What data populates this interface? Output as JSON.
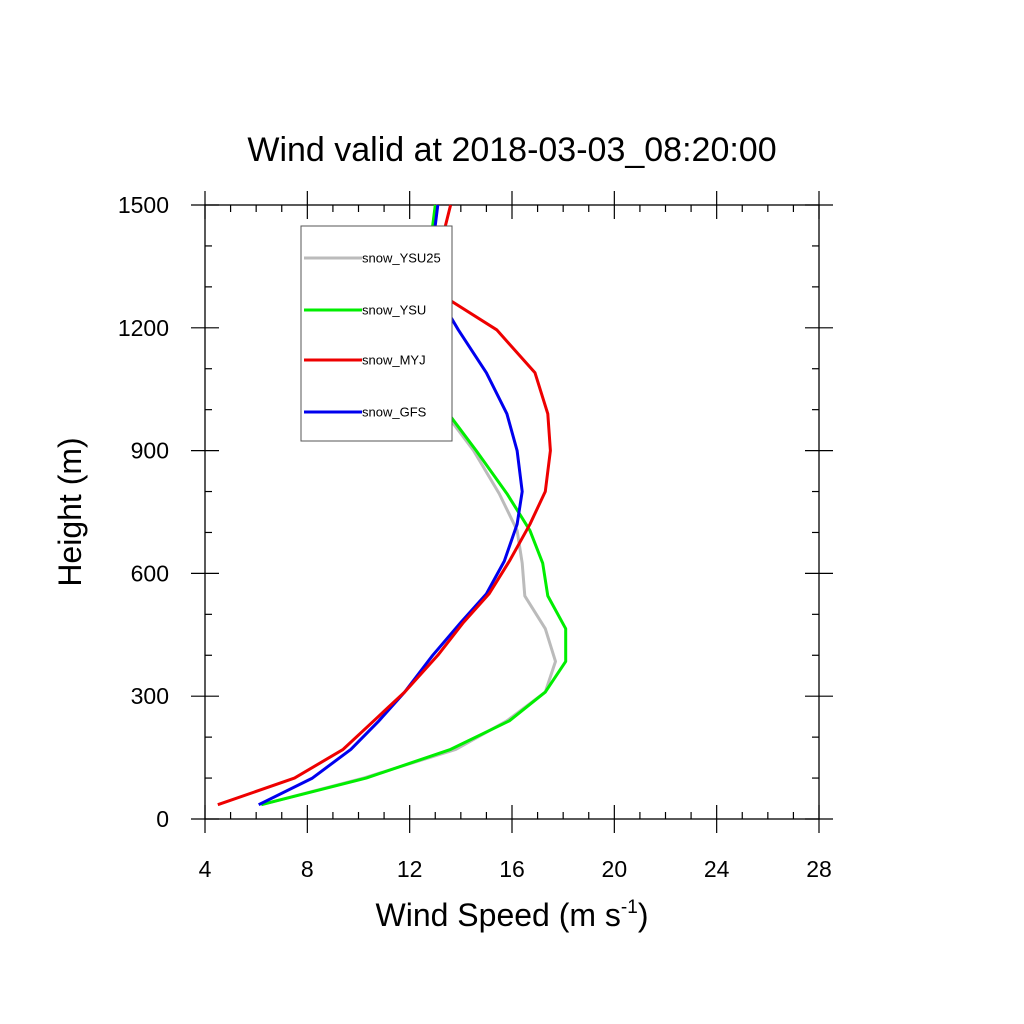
{
  "chart_data": {
    "type": "line",
    "title": "Wind valid at 2018-03-03_08:20:00",
    "xlabel": "Wind Speed (m s",
    "xlabel_sup": "-1",
    "xlabel_end": ")",
    "ylabel": "Height (m)",
    "xlim": [
      4,
      28
    ],
    "ylim": [
      0,
      1500
    ],
    "xticks": [
      "4",
      "8",
      "12",
      "16",
      "20",
      "24",
      "28"
    ],
    "yticks": [
      "0",
      "300",
      "600",
      "900",
      "1200",
      "1500"
    ],
    "legend_position": "top-left",
    "series": [
      {
        "name": "snow_YSU25",
        "color": "#bbbbbb",
        "points": [
          [
            6.2,
            35
          ],
          [
            10.2,
            100
          ],
          [
            13.8,
            170
          ],
          [
            15.8,
            240
          ],
          [
            17.3,
            310
          ],
          [
            17.7,
            385
          ],
          [
            17.3,
            465
          ],
          [
            16.5,
            545
          ],
          [
            16.4,
            625
          ],
          [
            16.2,
            705
          ],
          [
            15.5,
            795
          ],
          [
            14.5,
            900
          ],
          [
            13.3,
            1000
          ],
          [
            12.8,
            1090
          ],
          [
            12.6,
            1195
          ],
          [
            12.6,
            1290
          ],
          [
            12.8,
            1400
          ],
          [
            13.1,
            1500
          ]
        ]
      },
      {
        "name": "snow_YSU",
        "color": "#00ee00",
        "points": [
          [
            6.2,
            35
          ],
          [
            10.3,
            100
          ],
          [
            13.6,
            170
          ],
          [
            15.9,
            240
          ],
          [
            17.3,
            310
          ],
          [
            18.1,
            385
          ],
          [
            18.1,
            465
          ],
          [
            17.4,
            545
          ],
          [
            17.2,
            625
          ],
          [
            16.7,
            705
          ],
          [
            15.8,
            795
          ],
          [
            14.6,
            900
          ],
          [
            13.4,
            1000
          ],
          [
            12.9,
            1090
          ],
          [
            12.5,
            1195
          ],
          [
            12.4,
            1290
          ],
          [
            12.8,
            1400
          ],
          [
            13.0,
            1500
          ]
        ]
      },
      {
        "name": "snow_MYJ",
        "color": "#ee0000",
        "points": [
          [
            4.5,
            35
          ],
          [
            7.5,
            100
          ],
          [
            9.4,
            170
          ],
          [
            10.6,
            240
          ],
          [
            11.8,
            310
          ],
          [
            13.1,
            400
          ],
          [
            14.1,
            480
          ],
          [
            15.1,
            550
          ],
          [
            15.9,
            630
          ],
          [
            16.7,
            720
          ],
          [
            17.3,
            800
          ],
          [
            17.5,
            900
          ],
          [
            17.4,
            990
          ],
          [
            16.9,
            1090
          ],
          [
            15.4,
            1195
          ],
          [
            13.0,
            1290
          ],
          [
            13.2,
            1400
          ],
          [
            13.6,
            1500
          ]
        ]
      },
      {
        "name": "snow_GFS",
        "color": "#0000ee",
        "points": [
          [
            6.1,
            35
          ],
          [
            8.2,
            100
          ],
          [
            9.7,
            170
          ],
          [
            10.8,
            240
          ],
          [
            11.8,
            310
          ],
          [
            12.9,
            400
          ],
          [
            14.0,
            480
          ],
          [
            15.0,
            550
          ],
          [
            15.7,
            630
          ],
          [
            16.2,
            720
          ],
          [
            16.4,
            800
          ],
          [
            16.2,
            900
          ],
          [
            15.8,
            990
          ],
          [
            15.0,
            1090
          ],
          [
            13.9,
            1195
          ],
          [
            13.0,
            1290
          ],
          [
            12.9,
            1400
          ],
          [
            13.1,
            1500
          ]
        ]
      }
    ]
  }
}
